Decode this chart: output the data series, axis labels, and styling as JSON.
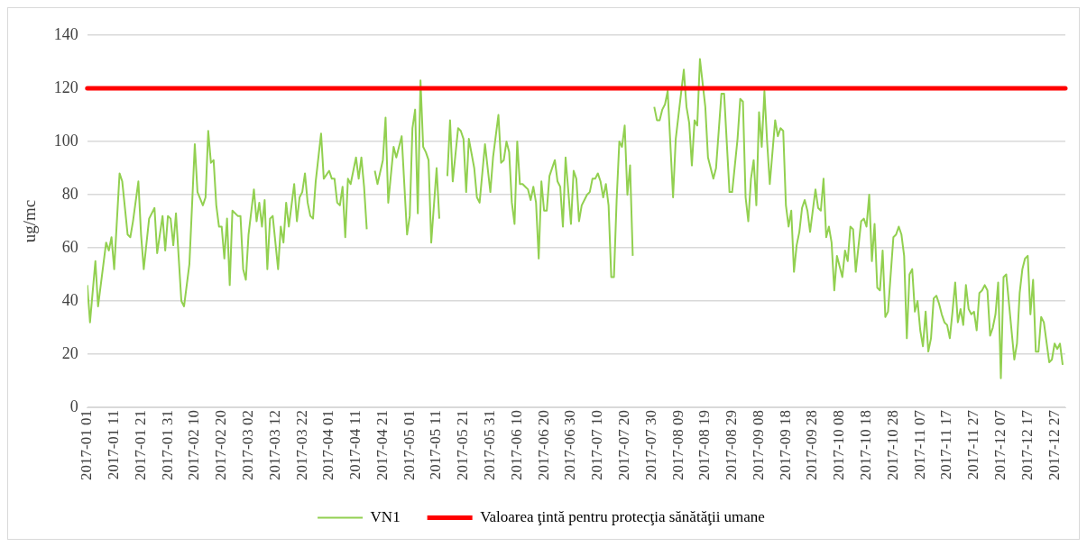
{
  "chart_data": {
    "type": "line",
    "ylabel": "ug/mc",
    "legend": "bottom",
    "grid": "y",
    "ylim": [
      0,
      140
    ],
    "yticks": [
      0,
      20,
      40,
      60,
      80,
      100,
      120,
      140
    ],
    "xlim": [
      "2017-01-01",
      "2017-12-31"
    ],
    "xticks": [
      {
        "value": "2017-01-01",
        "label": "2017-01 01"
      },
      {
        "value": "2017-01-11",
        "label": "2017-01 11"
      },
      {
        "value": "2017-01-21",
        "label": "2017-01 21"
      },
      {
        "value": "2017-01-31",
        "label": "2017-01 31"
      },
      {
        "value": "2017-02-10",
        "label": "2017-02 10"
      },
      {
        "value": "2017-02-20",
        "label": "2017-02 20"
      },
      {
        "value": "2017-03-02",
        "label": "2017-03 02"
      },
      {
        "value": "2017-03-12",
        "label": "2017-03 12"
      },
      {
        "value": "2017-03-22",
        "label": "2017-03 22"
      },
      {
        "value": "2017-04-01",
        "label": "2017-04 01"
      },
      {
        "value": "2017-04-11",
        "label": "2017-04 11"
      },
      {
        "value": "2017-04-21",
        "label": "2017-04 21"
      },
      {
        "value": "2017-05-01",
        "label": "2017-05 01"
      },
      {
        "value": "2017-05-11",
        "label": "2017-05 11"
      },
      {
        "value": "2017-05-21",
        "label": "2017-05 21"
      },
      {
        "value": "2017-05-31",
        "label": "2017-05 31"
      },
      {
        "value": "2017-06-10",
        "label": "2017-06 10"
      },
      {
        "value": "2017-06-20",
        "label": "2017-06 20"
      },
      {
        "value": "2017-06-30",
        "label": "2017-06 30"
      },
      {
        "value": "2017-07-10",
        "label": "2017-07 10"
      },
      {
        "value": "2017-07-20",
        "label": "2017-07 20"
      },
      {
        "value": "2017-07-30",
        "label": "2017-07 30"
      },
      {
        "value": "2017-08-09",
        "label": "2017-08 09"
      },
      {
        "value": "2017-08-19",
        "label": "2017-08 19"
      },
      {
        "value": "2017-08-29",
        "label": "2017-08 29"
      },
      {
        "value": "2017-09-08",
        "label": "2017-09 08"
      },
      {
        "value": "2017-09-18",
        "label": "2017-09 18"
      },
      {
        "value": "2017-09-28",
        "label": "2017-09 28"
      },
      {
        "value": "2017-10-08",
        "label": "2017-10 08"
      },
      {
        "value": "2017-10-18",
        "label": "2017-10 18"
      },
      {
        "value": "2017-10-28",
        "label": "2017-10 28"
      },
      {
        "value": "2017-11-07",
        "label": "2017-11 07"
      },
      {
        "value": "2017-11-17",
        "label": "2017-11 17"
      },
      {
        "value": "2017-11-27",
        "label": "2017-11 27"
      },
      {
        "value": "2017-12-07",
        "label": "2017-12 07"
      },
      {
        "value": "2017-12-17",
        "label": "2017-12 17"
      },
      {
        "value": "2017-12-27",
        "label": "2017-12 27"
      }
    ],
    "ref_lines": [
      {
        "axis": "y",
        "value": 120,
        "label": "Valoarea ţintă pentru protecţia sănătăţii umane",
        "color": "#ff0000"
      }
    ],
    "series": [
      {
        "name": "VN1",
        "color": "#92d050",
        "x": [
          "2017-01-01",
          "2017-01-02",
          "2017-01-04",
          "2017-01-05",
          "2017-01-08",
          "2017-01-09",
          "2017-01-10",
          "2017-01-11",
          "2017-01-13",
          "2017-01-14",
          "2017-01-16",
          "2017-01-17",
          "2017-01-18",
          "2017-01-20",
          "2017-01-21",
          "2017-01-22",
          "2017-01-24",
          "2017-01-26",
          "2017-01-27",
          "2017-01-29",
          "2017-01-30",
          "2017-01-31",
          "2017-02-01",
          "2017-02-02",
          "2017-02-03",
          "2017-02-05",
          "2017-02-06",
          "2017-02-08",
          "2017-02-10",
          "2017-02-11",
          "2017-02-13",
          "2017-02-14",
          "2017-02-15",
          "2017-02-16",
          "2017-02-17",
          "2017-02-18",
          "2017-02-19",
          "2017-02-20",
          "2017-02-21",
          "2017-02-22",
          "2017-02-23",
          "2017-02-24",
          "2017-02-26",
          "2017-02-27",
          "2017-02-28",
          "2017-03-01",
          "2017-03-02",
          "2017-03-04",
          "2017-03-05",
          "2017-03-06",
          "2017-03-07",
          "2017-03-08",
          "2017-03-09",
          "2017-03-10",
          "2017-03-11",
          "2017-03-13",
          "2017-03-14",
          "2017-03-15",
          "2017-03-16",
          "2017-03-17",
          "2017-03-19",
          "2017-03-20",
          "2017-03-21",
          "2017-03-22",
          "2017-03-23",
          "2017-03-24",
          "2017-03-25",
          "2017-03-26",
          "2017-03-27",
          "2017-03-29",
          "2017-03-30",
          "2017-04-01",
          "2017-04-02",
          "2017-04-03",
          "2017-04-04",
          "2017-04-05",
          "2017-04-06",
          "2017-04-07",
          "2017-04-08",
          "2017-04-09",
          "2017-04-11",
          "2017-04-12",
          "2017-04-13",
          "2017-04-14",
          "2017-04-15",
          "2017-04-16",
          "2017-04-18",
          "2017-04-19",
          "2017-04-21",
          "2017-04-22",
          "2017-04-23",
          "2017-04-25",
          "2017-04-26",
          "2017-04-28",
          "2017-04-30",
          "2017-05-01",
          "2017-05-02",
          "2017-05-03",
          "2017-05-04",
          "2017-05-05",
          "2017-05-06",
          "2017-05-07",
          "2017-05-08",
          "2017-05-09",
          "2017-05-11",
          "2017-05-12",
          "2017-05-13",
          "2017-05-15",
          "2017-05-16",
          "2017-05-17",
          "2017-05-19",
          "2017-05-20",
          "2017-05-21",
          "2017-05-22",
          "2017-05-23",
          "2017-05-25",
          "2017-05-26",
          "2017-05-27",
          "2017-05-29",
          "2017-05-31",
          "2017-06-01",
          "2017-06-03",
          "2017-06-04",
          "2017-06-05",
          "2017-06-06",
          "2017-06-07",
          "2017-06-08",
          "2017-06-09",
          "2017-06-10",
          "2017-06-11",
          "2017-06-12",
          "2017-06-13",
          "2017-06-14",
          "2017-06-15",
          "2017-06-16",
          "2017-06-17",
          "2017-06-18",
          "2017-06-19",
          "2017-06-20",
          "2017-06-21",
          "2017-06-22",
          "2017-06-24",
          "2017-06-25",
          "2017-06-26",
          "2017-06-27",
          "2017-06-28",
          "2017-06-30",
          "2017-07-01",
          "2017-07-02",
          "2017-07-03",
          "2017-07-04",
          "2017-07-05",
          "2017-07-06",
          "2017-07-07",
          "2017-07-08",
          "2017-07-09",
          "2017-07-10",
          "2017-07-11",
          "2017-07-12",
          "2017-07-13",
          "2017-07-14",
          "2017-07-15",
          "2017-07-16",
          "2017-07-17",
          "2017-07-18",
          "2017-07-19",
          "2017-07-20",
          "2017-07-21",
          "2017-07-22",
          "2017-07-23",
          "2017-07-25",
          "2017-07-31",
          "2017-08-01",
          "2017-08-02",
          "2017-08-03",
          "2017-08-04",
          "2017-08-05",
          "2017-08-07",
          "2017-08-08",
          "2017-08-11",
          "2017-08-12",
          "2017-08-13",
          "2017-08-14",
          "2017-08-15",
          "2017-08-16",
          "2017-08-17",
          "2017-08-19",
          "2017-08-20",
          "2017-08-22",
          "2017-08-23",
          "2017-08-25",
          "2017-08-26",
          "2017-08-28",
          "2017-08-29",
          "2017-08-31",
          "2017-09-01",
          "2017-09-02",
          "2017-09-03",
          "2017-09-04",
          "2017-09-05",
          "2017-09-06",
          "2017-09-07",
          "2017-09-08",
          "2017-09-09",
          "2017-09-10",
          "2017-09-11",
          "2017-09-12",
          "2017-09-14",
          "2017-09-15",
          "2017-09-16",
          "2017-09-17",
          "2017-09-18",
          "2017-09-19",
          "2017-09-20",
          "2017-09-21",
          "2017-09-22",
          "2017-09-23",
          "2017-09-24",
          "2017-09-25",
          "2017-09-26",
          "2017-09-27",
          "2017-09-29",
          "2017-09-30",
          "2017-10-01",
          "2017-10-02",
          "2017-10-03",
          "2017-10-04",
          "2017-10-05",
          "2017-10-06",
          "2017-10-07",
          "2017-10-09",
          "2017-10-10",
          "2017-10-11",
          "2017-10-12",
          "2017-10-13",
          "2017-10-14",
          "2017-10-16",
          "2017-10-17",
          "2017-10-18",
          "2017-10-19",
          "2017-10-20",
          "2017-10-21",
          "2017-10-22",
          "2017-10-23",
          "2017-10-24",
          "2017-10-25",
          "2017-10-26",
          "2017-10-28",
          "2017-10-29",
          "2017-10-30",
          "2017-10-31",
          "2017-11-01",
          "2017-11-02",
          "2017-11-03",
          "2017-11-04",
          "2017-11-05",
          "2017-11-06",
          "2017-11-07",
          "2017-11-08",
          "2017-11-09",
          "2017-11-10",
          "2017-11-11",
          "2017-11-12",
          "2017-11-13",
          "2017-11-14",
          "2017-11-15",
          "2017-11-16",
          "2017-11-17",
          "2017-11-18",
          "2017-11-19",
          "2017-11-20",
          "2017-11-21",
          "2017-11-22",
          "2017-11-23",
          "2017-11-24",
          "2017-11-25",
          "2017-11-26",
          "2017-11-27",
          "2017-11-28",
          "2017-11-29",
          "2017-11-30",
          "2017-12-01",
          "2017-12-02",
          "2017-12-03",
          "2017-12-04",
          "2017-12-05",
          "2017-12-06",
          "2017-12-07",
          "2017-12-08",
          "2017-12-09",
          "2017-12-12",
          "2017-12-13",
          "2017-12-14",
          "2017-12-15",
          "2017-12-16",
          "2017-12-17",
          "2017-12-18",
          "2017-12-19",
          "2017-12-20",
          "2017-12-21",
          "2017-12-22",
          "2017-12-23",
          "2017-12-25",
          "2017-12-26",
          "2017-12-27",
          "2017-12-28",
          "2017-12-29",
          "2017-12-30"
        ],
        "values": [
          46,
          32,
          55,
          38,
          62,
          59,
          64,
          52,
          88,
          85,
          65,
          64,
          70,
          85,
          65,
          52,
          71,
          75,
          58,
          72,
          59,
          72,
          71,
          61,
          73,
          40,
          38,
          54,
          99,
          81,
          76,
          79,
          104,
          92,
          93,
          76,
          68,
          68,
          56,
          71,
          46,
          74,
          72,
          72,
          52,
          48,
          65,
          82,
          70,
          77,
          68,
          78,
          52,
          71,
          72,
          52,
          68,
          62,
          77,
          68,
          84,
          70,
          79,
          81,
          88,
          77,
          72,
          71,
          85,
          103,
          86,
          89,
          86,
          86,
          77,
          76,
          83,
          64,
          86,
          84,
          94,
          86,
          94,
          83,
          67,
          null,
          89,
          84,
          93,
          109,
          77,
          98,
          94,
          102,
          65,
          72,
          105,
          112,
          73,
          123,
          98,
          96,
          93,
          62,
          90,
          71,
          null,
          87,
          108,
          85,
          105,
          104,
          101,
          81,
          101,
          90,
          79,
          77,
          99,
          81,
          94,
          110,
          92,
          93,
          100,
          96,
          77,
          69,
          100,
          84,
          84,
          83,
          82,
          78,
          83,
          77,
          56,
          85,
          74,
          74,
          87,
          93,
          85,
          83,
          68,
          94,
          69,
          89,
          86,
          70,
          76,
          78,
          80,
          81,
          86,
          86,
          88,
          85,
          79,
          84,
          76,
          49,
          49,
          78,
          100,
          98,
          106,
          80,
          91,
          57,
          null,
          113,
          108,
          108,
          112,
          114,
          119,
          79,
          101,
          127,
          113,
          107,
          91,
          108,
          106,
          131,
          113,
          94,
          86,
          90,
          118,
          118,
          81,
          81,
          101,
          116,
          115,
          79,
          70,
          86,
          93,
          76,
          111,
          98,
          119,
          100,
          84,
          108,
          102,
          105,
          104,
          76,
          68,
          74,
          51,
          61,
          66,
          75,
          78,
          74,
          66,
          82,
          75,
          74,
          86,
          64,
          68,
          62,
          44,
          57,
          49,
          59,
          55,
          68,
          67,
          51,
          70,
          71,
          68,
          80,
          55,
          69,
          45,
          44,
          59,
          34,
          36,
          64,
          65,
          68,
          65,
          57,
          26,
          50,
          52,
          36,
          40,
          29,
          23,
          36,
          21,
          26,
          41,
          42,
          39,
          35,
          32,
          31,
          26,
          36,
          47,
          32,
          37,
          31,
          46,
          37,
          35,
          36,
          29,
          43,
          44,
          46,
          44,
          27,
          30,
          35,
          47,
          11,
          49,
          50,
          18,
          24,
          43,
          52,
          56,
          57,
          35,
          48,
          21,
          21,
          34,
          32,
          17,
          18,
          24,
          22,
          24,
          16
        ]
      }
    ]
  }
}
